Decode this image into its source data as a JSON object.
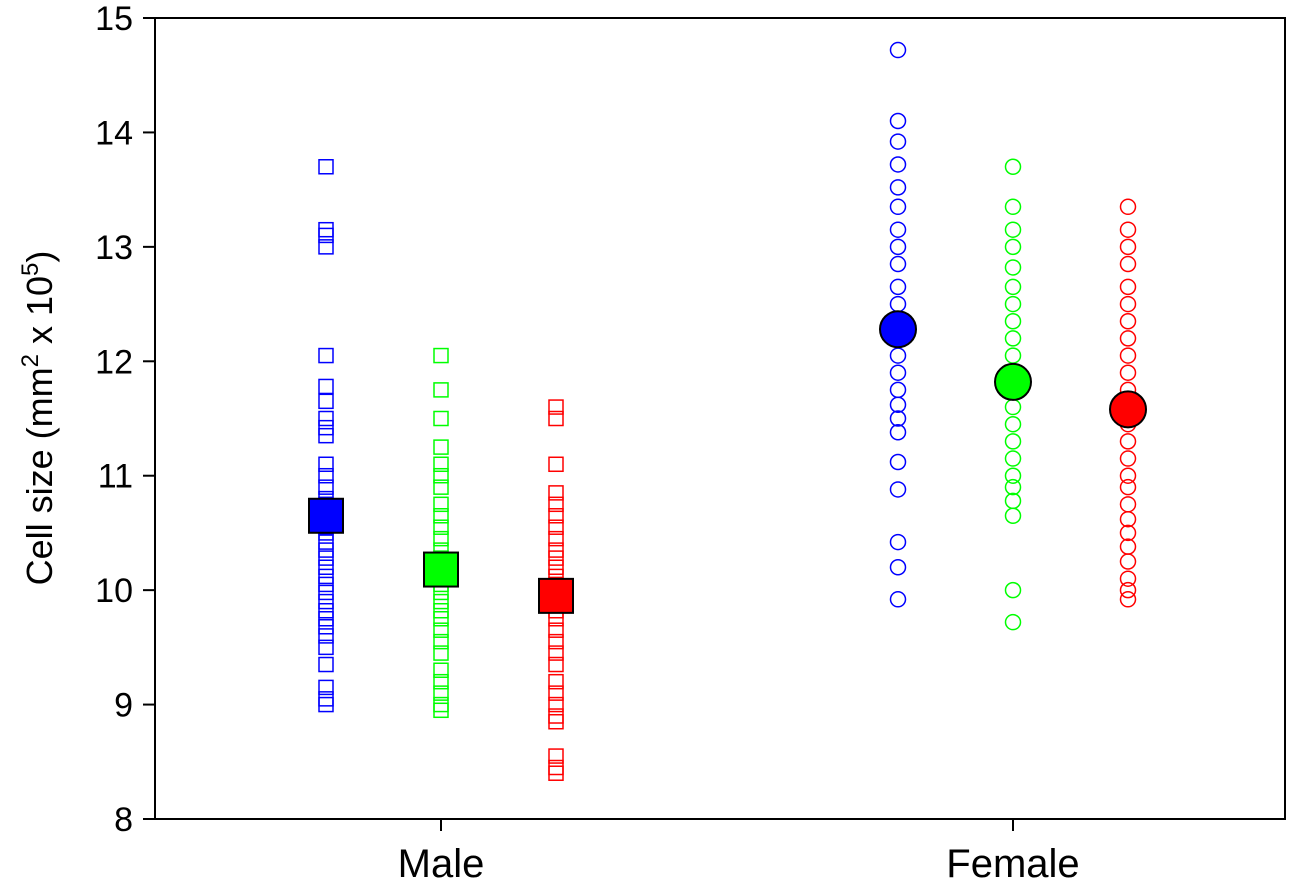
{
  "chart_data": {
    "type": "scatter",
    "title": "",
    "ylabel": {
      "main": "Cell size (mm",
      "sup1": "2",
      "mid": " x 10",
      "sup2": "5",
      "end": ")"
    },
    "xlabel": "",
    "ylim": [
      8,
      15
    ],
    "yticks": [
      "8",
      "9",
      "10",
      "11",
      "12",
      "13",
      "14",
      "15"
    ],
    "categories": [
      "Male",
      "Female"
    ],
    "grid": false,
    "colors": {
      "blue": "#0000ff",
      "green": "#00ff00",
      "red": "#ff0000"
    },
    "groups": [
      {
        "category": "Male",
        "color": "#0000ff",
        "marker": "square",
        "mean": 10.65,
        "values": [
          13.7,
          13.15,
          13.1,
          13.0,
          12.05,
          11.78,
          11.65,
          11.5,
          11.42,
          11.35,
          11.1,
          11.0,
          10.9,
          10.8,
          10.75,
          10.65,
          10.6,
          10.55,
          10.5,
          10.42,
          10.35,
          10.28,
          10.2,
          10.12,
          10.05,
          9.98,
          9.9,
          9.82,
          9.75,
          9.68,
          9.6,
          9.5,
          9.35,
          9.15,
          9.05,
          9.0
        ]
      },
      {
        "category": "Male",
        "color": "#00ff00",
        "marker": "square",
        "mean": 10.18,
        "values": [
          12.05,
          11.75,
          11.5,
          11.25,
          11.1,
          11.0,
          10.9,
          10.75,
          10.65,
          10.55,
          10.45,
          10.35,
          10.28,
          10.2,
          10.12,
          10.05,
          9.98,
          9.9,
          9.82,
          9.75,
          9.65,
          9.55,
          9.45,
          9.3,
          9.2,
          9.1,
          9.0,
          8.95
        ]
      },
      {
        "category": "Male",
        "color": "#ff0000",
        "marker": "square",
        "mean": 9.95,
        "values": [
          11.6,
          11.5,
          11.1,
          10.85,
          10.75,
          10.65,
          10.55,
          10.45,
          10.35,
          10.28,
          10.2,
          10.12,
          10.05,
          9.98,
          9.9,
          9.82,
          9.75,
          9.65,
          9.55,
          9.45,
          9.35,
          9.2,
          9.1,
          9.0,
          8.9,
          8.85,
          8.55,
          8.45,
          8.4
        ]
      },
      {
        "category": "Female",
        "color": "#0000ff",
        "marker": "circle",
        "mean": 12.28,
        "values": [
          14.72,
          14.1,
          13.92,
          13.72,
          13.52,
          13.35,
          13.15,
          13.0,
          12.85,
          12.65,
          12.5,
          12.35,
          12.2,
          12.05,
          11.9,
          11.75,
          11.62,
          11.5,
          11.38,
          11.12,
          10.88,
          10.42,
          10.2,
          9.92
        ]
      },
      {
        "category": "Female",
        "color": "#00ff00",
        "marker": "circle",
        "mean": 11.82,
        "values": [
          13.7,
          13.35,
          13.15,
          13.0,
          12.82,
          12.65,
          12.5,
          12.35,
          12.2,
          12.05,
          11.9,
          11.75,
          11.6,
          11.45,
          11.3,
          11.15,
          11.0,
          10.9,
          10.78,
          10.65,
          10.0,
          9.72
        ]
      },
      {
        "category": "Female",
        "color": "#ff0000",
        "marker": "circle",
        "mean": 11.58,
        "values": [
          13.35,
          13.15,
          13.0,
          12.85,
          12.65,
          12.5,
          12.35,
          12.2,
          12.05,
          11.9,
          11.75,
          11.6,
          11.45,
          11.3,
          11.15,
          11.0,
          10.9,
          10.75,
          10.62,
          10.5,
          10.38,
          10.25,
          10.1,
          10.0,
          9.92
        ]
      }
    ]
  }
}
